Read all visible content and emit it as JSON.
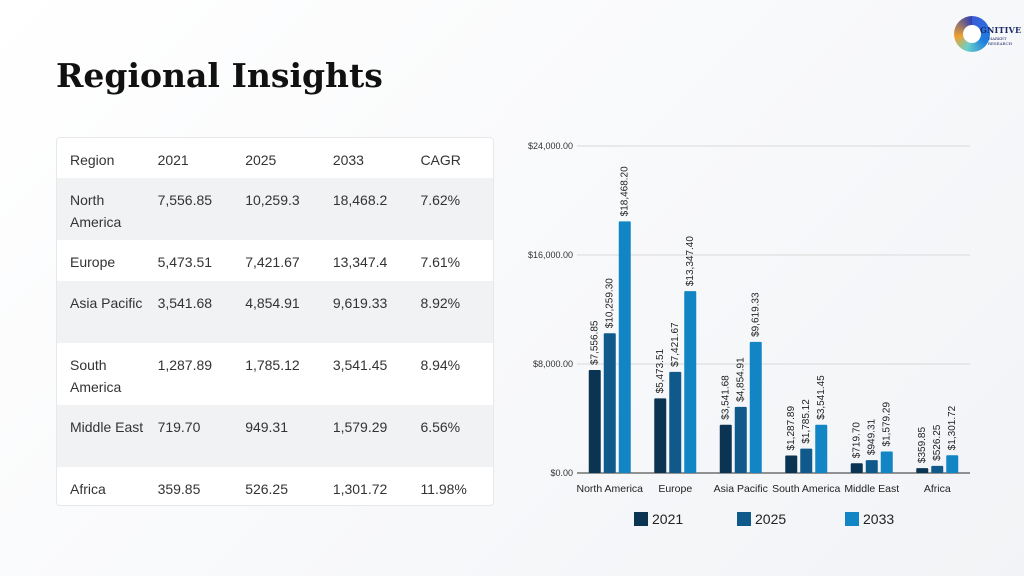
{
  "title": "Regional Insights",
  "logo": {
    "name": "Cognitive Market Research",
    "line1": "GNITIVE",
    "line2a": "MARKET",
    "line2b": "RESEARCH"
  },
  "table": {
    "headers": [
      "Region",
      "2021",
      "2025",
      "2033",
      "CAGR"
    ],
    "rows": [
      [
        "North America",
        "7,556.85",
        "10,259.3",
        "18,468.2",
        "7.62%"
      ],
      [
        "Europe",
        "5,473.51",
        "7,421.67",
        "13,347.4",
        "7.61%"
      ],
      [
        "Asia Pacific",
        "3,541.68",
        "4,854.91",
        "9,619.33",
        "8.92%"
      ],
      [
        "South America",
        "1,287.89",
        "1,785.12",
        "3,541.45",
        "8.94%"
      ],
      [
        "Middle East",
        "719.70",
        "949.31",
        "1,579.29",
        "6.56%"
      ],
      [
        "Africa",
        "359.85",
        "526.25",
        "1,301.72",
        "11.98%"
      ]
    ]
  },
  "chart_data": {
    "type": "bar",
    "categories": [
      "North America",
      "Europe",
      "Asia Pacific",
      "South America",
      "Middle East",
      "Africa"
    ],
    "series": [
      {
        "name": "2021",
        "color": "#0b3352",
        "values": [
          7556.85,
          5473.51,
          3541.68,
          1287.89,
          719.7,
          359.85
        ],
        "labels": [
          "$7,556.85",
          "$5,473.51",
          "$3,541.68",
          "$1,287.89",
          "$719.70",
          "$359.85"
        ]
      },
      {
        "name": "2025",
        "color": "#0f5a8a",
        "values": [
          10259.3,
          7421.67,
          4854.91,
          1785.12,
          949.31,
          526.25
        ],
        "labels": [
          "$10,259.30",
          "$7,421.67",
          "$4,854.91",
          "$1,785.12",
          "$949.31",
          "$526.25"
        ]
      },
      {
        "name": "2033",
        "color": "#1285c4",
        "values": [
          18468.2,
          13347.4,
          9619.33,
          3541.45,
          1579.29,
          1301.72
        ],
        "labels": [
          "$18,468.20",
          "$13,347.40",
          "$9,619.33",
          "$3,541.45",
          "$1,579.29",
          "$1,301.72"
        ]
      }
    ],
    "yticks": [
      0,
      8000,
      16000,
      24000
    ],
    "ytick_labels": [
      "$0.00",
      "$8,000.00",
      "$16,000.00",
      "$24,000.00"
    ],
    "ylim": [
      0,
      24000
    ],
    "grid": true,
    "legend_position": "bottom"
  }
}
